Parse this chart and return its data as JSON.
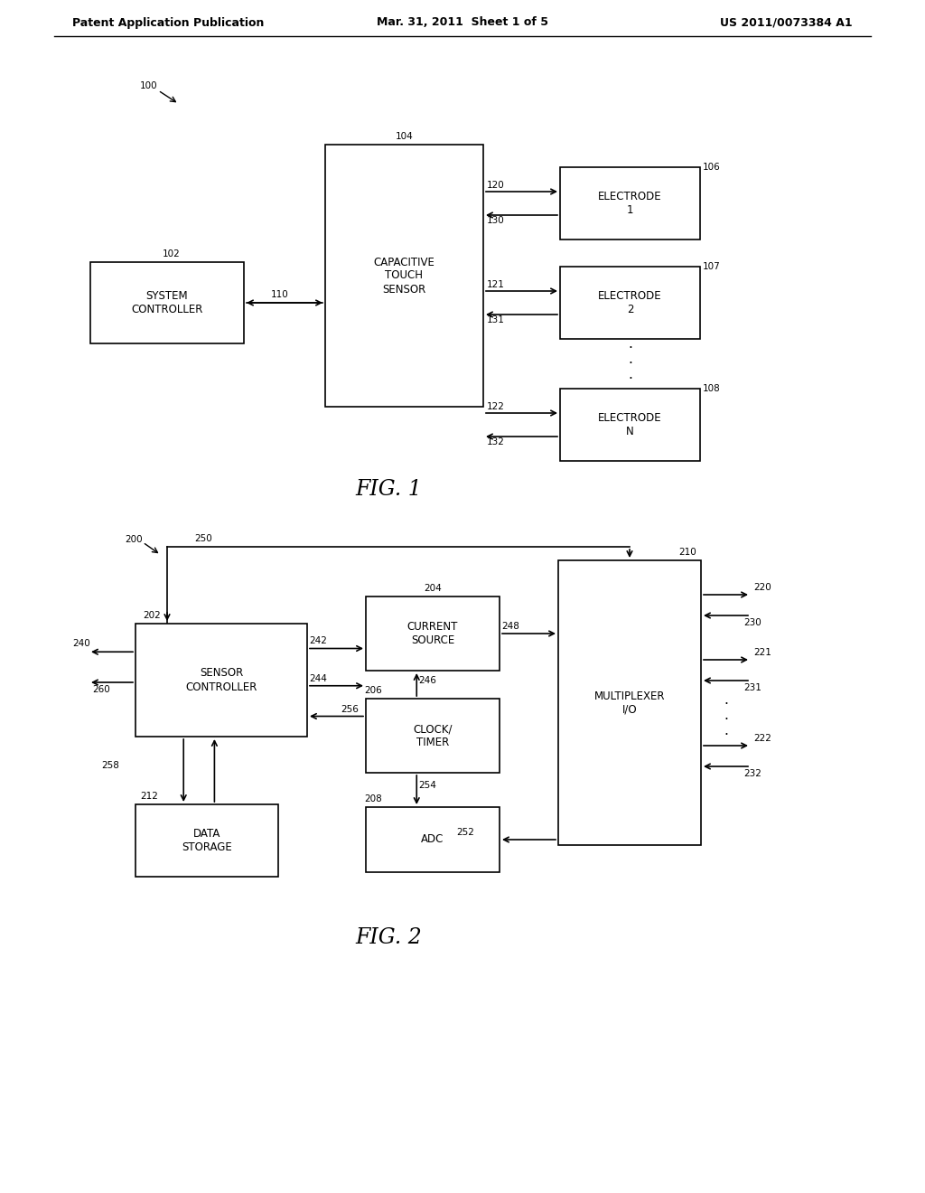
{
  "header_left": "Patent Application Publication",
  "header_center": "Mar. 31, 2011  Sheet 1 of 5",
  "header_right": "US 2011/0073384 A1",
  "fig1_label": "FIG. 1",
  "fig2_label": "FIG. 2",
  "background_color": "#ffffff",
  "line_color": "#000000",
  "box_fill": "#ffffff",
  "box_edge": "#000000",
  "text_color": "#000000",
  "font_size_header": 9,
  "font_size_box": 8,
  "font_size_label": 11,
  "font_size_fig": 14,
  "font_size_ref": 7.5
}
